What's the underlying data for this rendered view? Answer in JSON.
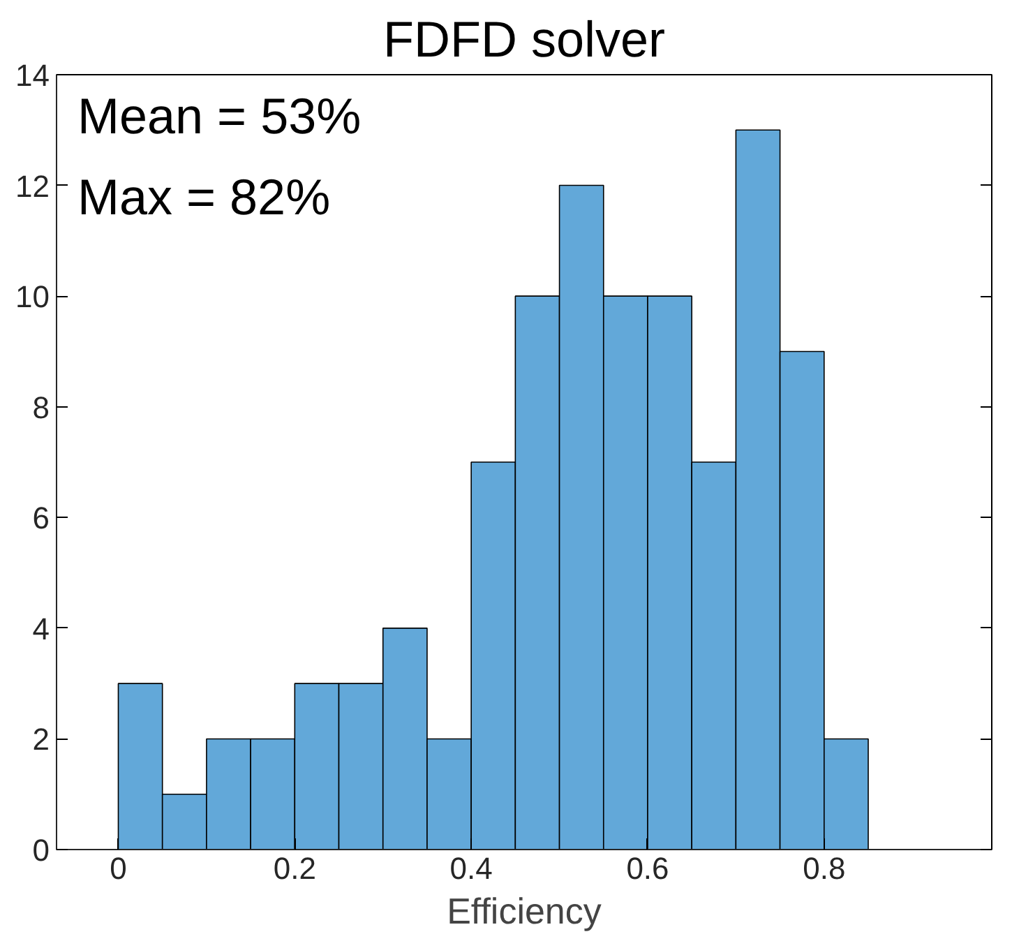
{
  "chart_data": {
    "type": "histogram",
    "title": "FDFD solver",
    "xlabel": "Efficiency",
    "bins": [
      0,
      0.05,
      0.1,
      0.15,
      0.2,
      0.25,
      0.3,
      0.35,
      0.4,
      0.45,
      0.5,
      0.55,
      0.6,
      0.65,
      0.7,
      0.75,
      0.8,
      0.85
    ],
    "values": [
      3,
      1,
      2,
      2,
      3,
      3,
      4,
      2,
      7,
      10,
      12,
      10,
      10,
      7,
      13,
      9,
      2
    ],
    "color": "#62a8d9",
    "xlim": [
      -0.07,
      0.99
    ],
    "xticks": [
      0,
      0.2,
      0.4,
      0.6,
      0.8
    ],
    "ylim": [
      0,
      14
    ],
    "yticks": [
      0,
      2,
      4,
      6,
      8,
      10,
      12,
      14
    ],
    "annotations": [
      "Mean = 53%",
      "Max = 82%"
    ],
    "grid": false
  }
}
